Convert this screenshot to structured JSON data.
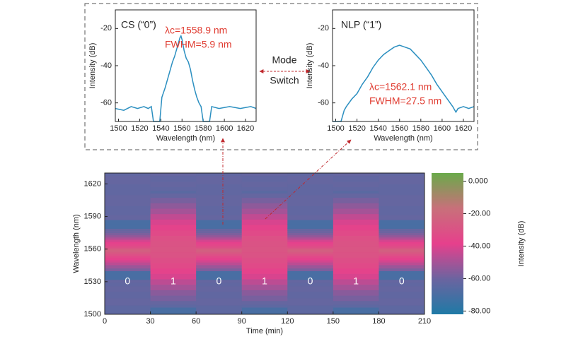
{
  "annotations": [
    "Mode",
    "Switch"
  ],
  "chart_data": [
    {
      "type": "line",
      "title": "CS (“0”)",
      "annotations": [
        "λc=1558.9 nm",
        "FWHM=5.9 nm"
      ],
      "x_label": "Wavelength (nm)",
      "y_label": "Intensity (dB)",
      "xlim": [
        1497,
        1630
      ],
      "ylim": [
        -70,
        -10
      ],
      "xticks": [
        1500,
        1520,
        1540,
        1560,
        1580,
        1600,
        1620
      ],
      "yticks": [
        -60,
        -40,
        -20
      ],
      "series": [
        {
          "color": "#2b8fc0",
          "x": [
            1497,
            1505,
            1512,
            1518,
            1524,
            1528,
            1531,
            1533,
            1539,
            1541,
            1544,
            1547,
            1549,
            1551,
            1553,
            1555,
            1557,
            1558,
            1559,
            1560,
            1562,
            1564,
            1566,
            1568,
            1570,
            1572,
            1574,
            1576,
            1578,
            1580,
            1586,
            1588,
            1595,
            1605,
            1615,
            1625,
            1630
          ],
          "values": [
            -63,
            -64,
            -62,
            -63,
            -62,
            -63,
            -62,
            -70,
            -70,
            -57,
            -52,
            -46,
            -42,
            -38,
            -35,
            -31,
            -27,
            -25,
            -24,
            -26,
            -32,
            -36,
            -38,
            -42,
            -48,
            -53,
            -57,
            -60,
            -62,
            -70,
            -70,
            -62,
            -63,
            -62,
            -63,
            -62,
            -63
          ]
        }
      ]
    },
    {
      "type": "line",
      "title": "NLP (“1”)",
      "annotations": [
        "λc=1562.1 nm",
        "FWHM=27.5 nm"
      ],
      "x_label": "Wavelength (nm)",
      "y_label": "Intensity (dB)",
      "xlim": [
        1497,
        1630
      ],
      "ylim": [
        -70,
        -10
      ],
      "xticks": [
        1500,
        1520,
        1540,
        1560,
        1580,
        1600,
        1620
      ],
      "yticks": [
        -60,
        -40,
        -20
      ],
      "series": [
        {
          "color": "#2b8fc0",
          "x": [
            1497,
            1505,
            1508,
            1510,
            1515,
            1520,
            1525,
            1530,
            1535,
            1540,
            1545,
            1550,
            1555,
            1560,
            1565,
            1570,
            1575,
            1580,
            1585,
            1590,
            1595,
            1600,
            1605,
            1610,
            1613,
            1615,
            1620,
            1625,
            1630
          ],
          "values": [
            -70,
            -70,
            -64,
            -62,
            -58,
            -55,
            -50,
            -46,
            -41,
            -37,
            -34,
            -32,
            -30,
            -29,
            -30,
            -31,
            -34,
            -37,
            -41,
            -45,
            -50,
            -54,
            -58,
            -62,
            -65,
            -63,
            -62,
            -63,
            -62
          ]
        }
      ]
    },
    {
      "type": "heatmap",
      "x_label": "Time (min)",
      "y_label": "Wavelength (nm)",
      "xlim": [
        0,
        210
      ],
      "ylim": [
        1500,
        1630
      ],
      "xticks": [
        0,
        30,
        60,
        90,
        120,
        150,
        180,
        210
      ],
      "yticks": [
        1500,
        1530,
        1560,
        1590,
        1620
      ],
      "states": [
        "0",
        "1",
        "0",
        "1",
        "0",
        "1",
        "0"
      ],
      "colorbar": {
        "label": "Intensity (dB)",
        "lim": [
          -82,
          5
        ],
        "ticks": [
          {
            "value": 0,
            "label": "0.000"
          },
          {
            "value": -20,
            "label": "-20.00"
          },
          {
            "value": -40,
            "label": "-40.00"
          },
          {
            "value": -60,
            "label": "-60.00"
          },
          {
            "value": -80,
            "label": "-80.00"
          }
        ],
        "colors": [
          "#1f7aa6",
          "#6b64a0",
          "#e6408c",
          "#c8707a",
          "#6aaa4a"
        ]
      }
    }
  ]
}
